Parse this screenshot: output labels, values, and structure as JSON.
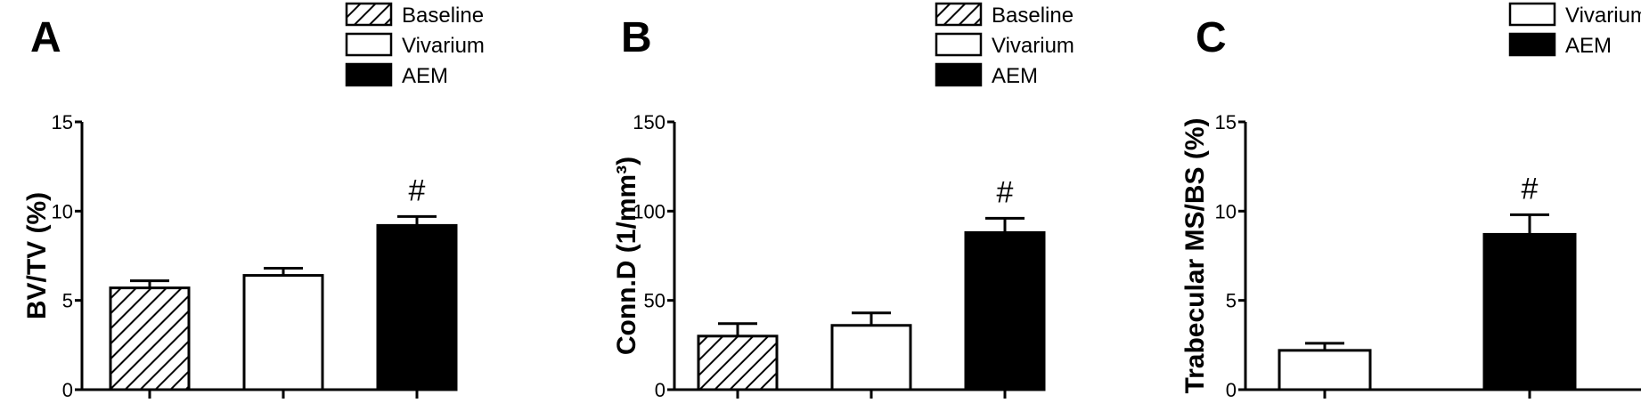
{
  "chart_data": [
    {
      "type": "bar",
      "panel": "A",
      "categories": [
        "Baseline",
        "Vivarium",
        "AEM"
      ],
      "values": [
        5.7,
        6.4,
        9.2
      ],
      "errors": [
        0.4,
        0.4,
        0.5
      ],
      "annotations": [
        "",
        "",
        "#"
      ],
      "legend": [
        "Baseline",
        "Vivarium",
        "AEM"
      ],
      "ylabel": "BV/TV (%)",
      "yticks": [
        0,
        5,
        10,
        15
      ],
      "ylim": [
        0,
        15
      ]
    },
    {
      "type": "bar",
      "panel": "B",
      "categories": [
        "Baseline",
        "Vivarium",
        "AEM"
      ],
      "values": [
        30,
        36,
        88
      ],
      "errors": [
        7,
        7,
        8
      ],
      "annotations": [
        "",
        "",
        "#"
      ],
      "legend": [
        "Baseline",
        "Vivarium",
        "AEM"
      ],
      "ylabel": "Conn.D (1/mm³)",
      "yticks": [
        0,
        50,
        100,
        150
      ],
      "ylim": [
        0,
        150
      ]
    },
    {
      "type": "bar",
      "panel": "C",
      "categories": [
        "Vivarium",
        "AEM"
      ],
      "values": [
        2.2,
        8.7
      ],
      "errors": [
        0.4,
        1.1
      ],
      "annotations": [
        "",
        "#"
      ],
      "legend": [
        "Vivarium",
        "AEM"
      ],
      "ylabel": "Trabecular MS/BS (%)",
      "yticks": [
        0,
        5,
        10,
        15
      ],
      "ylim": [
        0,
        15
      ]
    }
  ],
  "styles": {
    "Baseline": "hatch",
    "Vivarium": "#ffffff",
    "AEM": "#000000"
  }
}
